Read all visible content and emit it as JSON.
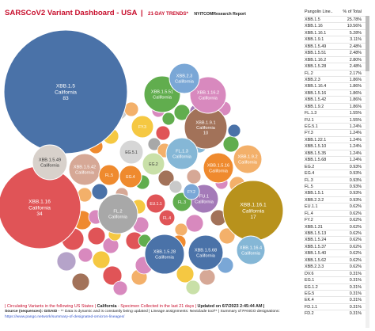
{
  "header": {
    "title": "SARSCoV2 Variant Dashboard - USA",
    "separator": "|",
    "subtitle": "21-DAY TRENDS*",
    "brand": "NYITCOMResearch Report"
  },
  "colors": {
    "accent": "#c8102e",
    "link": "#3355cc"
  },
  "table": {
    "col_lineage": "Pangolin Line..",
    "col_pct": "% of Total",
    "rows": [
      {
        "lineage": "XBB.1.5",
        "pct": "25.78%"
      },
      {
        "lineage": "XBB.1.16",
        "pct": "10.56%"
      },
      {
        "lineage": "XBB.1.16.1",
        "pct": "5.28%"
      },
      {
        "lineage": "XBB.1.9.1",
        "pct": "3.11%"
      },
      {
        "lineage": "XBB.1.5.49",
        "pct": "2.48%"
      },
      {
        "lineage": "XBB.1.5.51",
        "pct": "2.48%"
      },
      {
        "lineage": "XBB.1.16.2",
        "pct": "2.80%"
      },
      {
        "lineage": "XBB.1.5.28",
        "pct": "2.48%"
      },
      {
        "lineage": "FL.2",
        "pct": "2.17%"
      },
      {
        "lineage": "XBB.2.3",
        "pct": "1.86%"
      },
      {
        "lineage": "XBB.1.16.4",
        "pct": "1.86%"
      },
      {
        "lineage": "XBB.1.5.16",
        "pct": "1.86%"
      },
      {
        "lineage": "XBB.1.5.42",
        "pct": "1.86%"
      },
      {
        "lineage": "XBB.1.9.2",
        "pct": "1.86%"
      },
      {
        "lineage": "FL.1.3",
        "pct": "1.55%"
      },
      {
        "lineage": "FU.1",
        "pct": "1.55%"
      },
      {
        "lineage": "EG.5.1",
        "pct": "1.24%"
      },
      {
        "lineage": "FY.3",
        "pct": "1.24%"
      },
      {
        "lineage": "XBB.1.22.1",
        "pct": "1.24%"
      },
      {
        "lineage": "XBB.1.5.10",
        "pct": "1.24%"
      },
      {
        "lineage": "XBB.1.5.35",
        "pct": "1.24%"
      },
      {
        "lineage": "XBB.1.5.68",
        "pct": "1.24%"
      },
      {
        "lineage": "EG.2",
        "pct": "0.93%"
      },
      {
        "lineage": "EG.4",
        "pct": "0.93%"
      },
      {
        "lineage": "FL.3",
        "pct": "0.93%"
      },
      {
        "lineage": "FL.5",
        "pct": "0.93%"
      },
      {
        "lineage": "XBB.1.5.1",
        "pct": "0.93%"
      },
      {
        "lineage": "XBB.2.3.2",
        "pct": "0.93%"
      },
      {
        "lineage": "EU.1.1",
        "pct": "0.62%"
      },
      {
        "lineage": "FL.4",
        "pct": "0.62%"
      },
      {
        "lineage": "FY.2",
        "pct": "0.62%"
      },
      {
        "lineage": "XBB.1.31",
        "pct": "0.62%"
      },
      {
        "lineage": "XBB.1.5.13",
        "pct": "0.62%"
      },
      {
        "lineage": "XBB.1.5.24",
        "pct": "0.62%"
      },
      {
        "lineage": "XBB.1.5.37",
        "pct": "0.62%"
      },
      {
        "lineage": "XBB.1.5.40",
        "pct": "0.62%"
      },
      {
        "lineage": "XBB.1.5.62",
        "pct": "0.62%"
      },
      {
        "lineage": "XBB.2.3.3",
        "pct": "0.62%"
      },
      {
        "lineage": "DV.6",
        "pct": "0.31%"
      },
      {
        "lineage": "EG.1",
        "pct": "0.31%"
      },
      {
        "lineage": "EG.1.2",
        "pct": "0.31%"
      },
      {
        "lineage": "EG.5",
        "pct": "0.31%"
      },
      {
        "lineage": "EK.4",
        "pct": "0.31%"
      },
      {
        "lineage": "FD.1.1",
        "pct": "0.31%"
      },
      {
        "lineage": "FD.2",
        "pct": "0.31%"
      }
    ]
  },
  "chart_data": {
    "type": "bubble",
    "bubbles": [
      {
        "label": "XBB.1.5",
        "location": "California",
        "value": 83,
        "color": "#4a72a8"
      },
      {
        "label": "XBB.1.16",
        "location": "California",
        "value": 34,
        "color": "#e05457"
      },
      {
        "label": "XBB.1.16.1",
        "location": "California",
        "value": 17,
        "color": "#b8921c"
      },
      {
        "label": "XBB.1.9.1",
        "location": "California",
        "value": 10,
        "color": "#a27259"
      },
      {
        "label": "XBB.1.5.49",
        "location": "California",
        "value": null,
        "color": "#d8d1cb"
      },
      {
        "label": "XBB.1.5.51",
        "location": "California",
        "value": null,
        "color": "#61ad4e"
      },
      {
        "label": "XBB.1.16.2",
        "location": "California",
        "value": null,
        "color": "#d889be"
      },
      {
        "label": "XBB.1.5.28",
        "location": "California",
        "value": null,
        "color": "#4a72a8"
      },
      {
        "label": "FL.2",
        "location": "California",
        "value": null,
        "color": "#a8a8a8"
      },
      {
        "label": "XBB.2.3",
        "location": "California",
        "value": null,
        "color": "#7aa7d6"
      },
      {
        "label": "XBB.1.16.4",
        "location": "California",
        "value": null,
        "color": "#85b7d6"
      },
      {
        "label": "XBB.1.5.16",
        "location": "California",
        "value": null,
        "color": "#ef8a2e"
      },
      {
        "label": "XBB.1.5.42",
        "location": "California",
        "value": null,
        "color": "#d6a896"
      },
      {
        "label": "XBB.1.9.2",
        "location": "California",
        "value": null,
        "color": "#f3b06a"
      },
      {
        "label": "FL.1.3",
        "location": "California",
        "value": null,
        "color": "#85b7d6"
      },
      {
        "label": "FU.1",
        "location": "California",
        "value": null,
        "color": "#a47ab8"
      },
      {
        "label": "EG.5.1",
        "location": "",
        "value": null,
        "color": "#d6d6d6"
      },
      {
        "label": "FY.3",
        "location": "",
        "value": null,
        "color": "#f5c842"
      },
      {
        "label": "XBB.1.5.68",
        "location": "California",
        "value": null,
        "color": "#4a72a8"
      },
      {
        "label": "EG.2",
        "location": "",
        "value": null,
        "color": "#c9e0a8"
      },
      {
        "label": "EG.4",
        "location": "",
        "value": null,
        "color": "#ef8a2e"
      },
      {
        "label": "FL.3",
        "location": "",
        "value": null,
        "color": "#61ad4e"
      },
      {
        "label": "FL.5",
        "location": "",
        "value": null,
        "color": "#ef8a2e"
      },
      {
        "label": "EU.1.1",
        "location": "",
        "value": null,
        "color": "#e05457"
      },
      {
        "label": "FL.4",
        "location": "",
        "value": null,
        "color": "#e05457"
      },
      {
        "label": "FY.2",
        "location": "",
        "value": null,
        "color": "#7aa7d6"
      }
    ]
  },
  "footer": {
    "bar": "|",
    "circulating": "Circulating Variants in the following US States |",
    "location": "California",
    "specimen": "- Specimen Collected in the last 21 days |",
    "updated": "Updated on 6/7/2023 2:45:44 AM |",
    "source_label": "Source (sequences): GISAID",
    "source_text": " - ** Data is dynamic and is constantly being updated | Lineage assignments: Nextclade tool** | Summary of PANGO designations:",
    "link": "https://www.pango.network/summary-of-designated-omicron-lineages/"
  }
}
